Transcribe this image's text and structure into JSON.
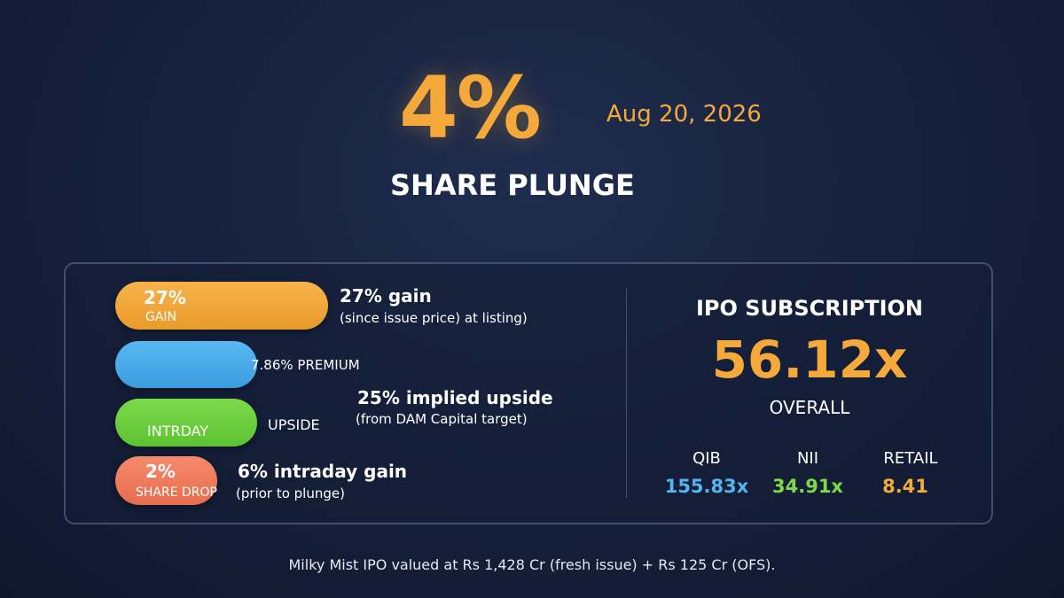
{
  "hero": {
    "value": "4%",
    "date": "Aug 20, 2026",
    "subtitle": "SHARE PLUNGE"
  },
  "stats": [
    {
      "pill": "27%",
      "caption": "GAIN",
      "title": "27% gain",
      "note": "(since issue price) at listing)"
    },
    {
      "caption": "7.86% PREMIUM"
    },
    {
      "caption": "INTRDAY",
      "side": "UPSIDE",
      "title": "25% implied upside",
      "note": "(from DAM Capital target)"
    },
    {
      "pill": "2%",
      "caption": "SHARE DROP",
      "title": "6% intraday gain",
      "note": "(prior to plunge)"
    }
  ],
  "subscription": {
    "title": "IPO SUBSCRIPTION",
    "overall": "56.12x",
    "overall_label": "OVERALL",
    "categories": [
      {
        "label": "QIB",
        "value": "155.83x"
      },
      {
        "label": "NII",
        "value": "34.91x"
      },
      {
        "label": "RETAIL",
        "value": "8.41"
      }
    ]
  },
  "footer": "Milky Mist IPO valued at Rs 1,428 Cr (fresh issue) + Rs 125 Cr (OFS)."
}
